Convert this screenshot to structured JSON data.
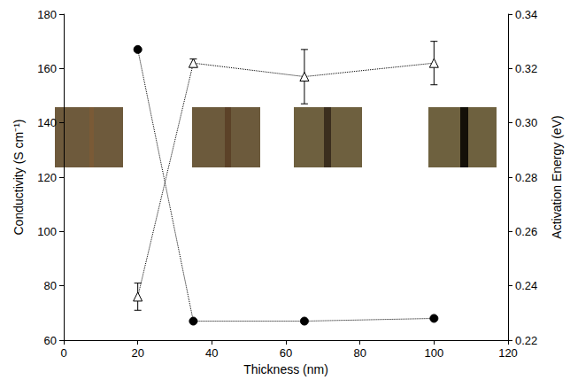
{
  "chart_data": {
    "type": "scatter",
    "x_label": "Thickness (nm)",
    "y_label": "Conductivity (S cm⁻¹)",
    "y2_label": "Activation Energy (eV)",
    "xlim": [
      0,
      120
    ],
    "xticks": [
      0,
      20,
      40,
      60,
      80,
      100,
      120
    ],
    "ylim": [
      60,
      180
    ],
    "yticks": [
      60,
      80,
      100,
      120,
      140,
      160,
      180
    ],
    "y2lim": [
      0.22,
      0.34
    ],
    "y2ticks": [
      0.22,
      0.24,
      0.26,
      0.28,
      {
        "value": 0.3,
        "label": "0.30"
      },
      0.32,
      0.34
    ],
    "grid": false,
    "series": [
      {
        "color": "#000000",
        "marker": "circle",
        "line_style": "dotted",
        "x": [
          20,
          35,
          65,
          100
        ],
        "values": [
          167,
          67,
          67,
          68
        ]
      },
      {
        "color": "#000000",
        "marker": "open triangle",
        "line_style": "dotted",
        "axis": "y2",
        "x": [
          20,
          35,
          65,
          100
        ],
        "values": [
          0.236,
          0.322,
          0.317,
          0.322
        ],
        "error": [
          0.005,
          0.0015,
          0.01,
          0.008
        ]
      }
    ]
  }
}
